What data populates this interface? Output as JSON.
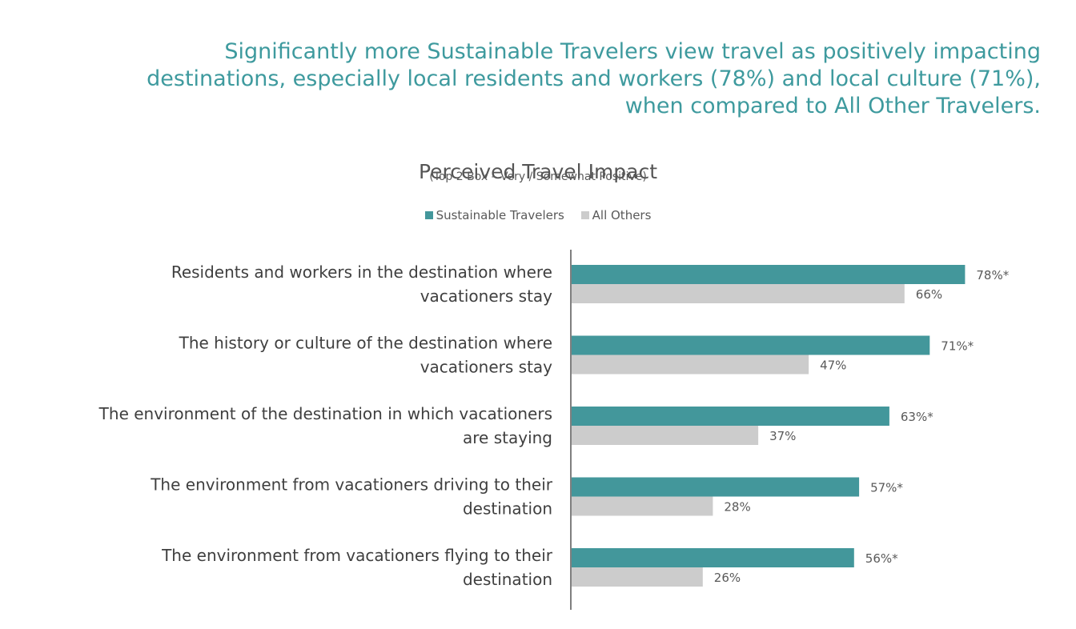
{
  "headline": {
    "line1": "Significantly more Sustainable Travelers view travel as positively impacting",
    "line2": "destinations, especially local residents and workers (78%) and local culture (71%),",
    "line3": "when compared to All Other Travelers."
  },
  "chart_data": {
    "type": "bar",
    "orientation": "horizontal",
    "title": "Perceived Travel Impact",
    "subtitle": "(Top 2 Box – Very / Somewhat Positive)",
    "legend_position": "top",
    "grid": false,
    "xlim": [
      0,
      100
    ],
    "categories": [
      [
        "Residents and workers in the destination where",
        "vacationers stay"
      ],
      [
        "The history or culture of the destination where",
        "vacationers stay"
      ],
      [
        "The environment of the destination in which vacationers",
        "are staying"
      ],
      [
        "The environment from vacationers driving to their",
        "destination"
      ],
      [
        "The environment from vacationers flying to their",
        "destination"
      ]
    ],
    "series": [
      {
        "name": "Sustainable Travelers",
        "color": "#43979b",
        "values": [
          78,
          71,
          63,
          57,
          56
        ],
        "labels": [
          "78%*",
          "71%*",
          "63%*",
          "57%*",
          "56%*"
        ]
      },
      {
        "name": "All Others",
        "color": "#cccccc",
        "values": [
          66,
          47,
          37,
          28,
          26
        ],
        "labels": [
          "66%",
          "47%",
          "37%",
          "28%",
          "26%"
        ]
      }
    ]
  }
}
